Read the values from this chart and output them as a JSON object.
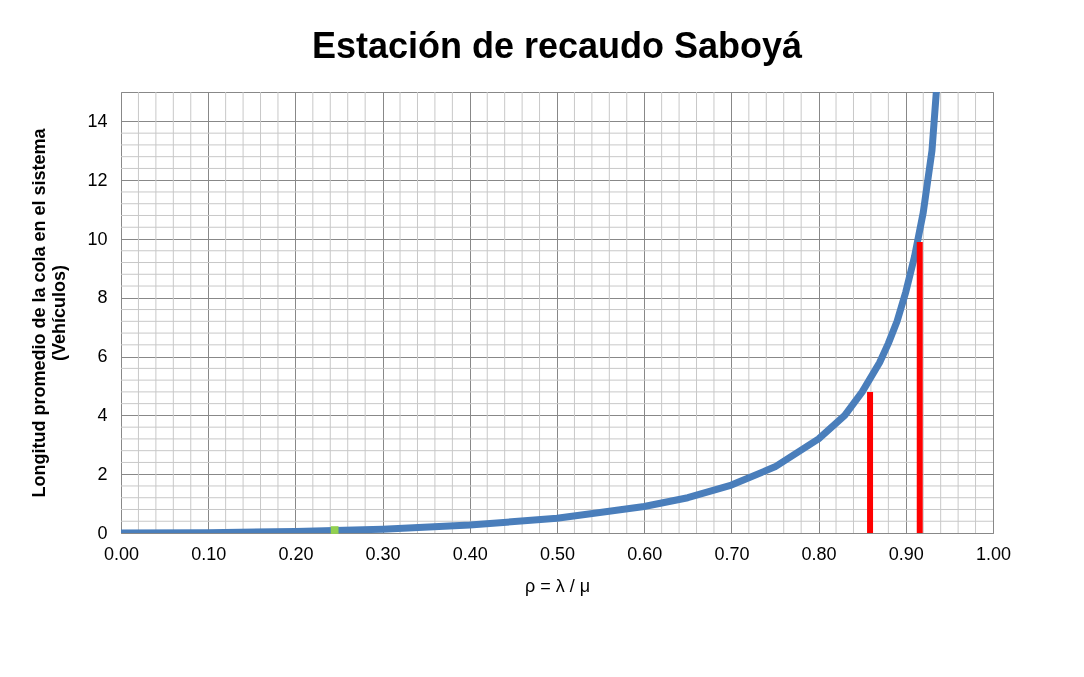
{
  "chart_data": {
    "type": "line",
    "title": "Estación de recaudo Saboyá",
    "xlabel": "ρ = λ / μ",
    "ylabel": "Longitud promedio de la cola en el sistema\n(Vehículos)",
    "xlim": [
      0,
      1
    ],
    "xticks": [
      {
        "value": 0,
        "label": "0.00"
      },
      {
        "value": 0.1,
        "label": "0.10"
      },
      {
        "value": 0.2,
        "label": "0.20"
      },
      {
        "value": 0.3,
        "label": "0.30"
      },
      {
        "value": 0.4,
        "label": "0.40"
      },
      {
        "value": 0.5,
        "label": "0.50"
      },
      {
        "value": 0.6,
        "label": "0.60"
      },
      {
        "value": 0.7,
        "label": "0.70"
      },
      {
        "value": 0.8,
        "label": "0.80"
      },
      {
        "value": 0.9,
        "label": "0.90"
      },
      {
        "value": 1,
        "label": "1.00"
      }
    ],
    "ylim": [
      0,
      15
    ],
    "yticks": [
      0,
      2,
      4,
      6,
      8,
      10,
      12,
      14
    ],
    "grid": true,
    "series": [
      {
        "color": "#4a7ebb",
        "x": [
          0,
          0.1,
          0.2,
          0.3,
          0.4,
          0.5,
          0.6,
          0.65,
          0.7,
          0.75,
          0.8,
          0.83,
          0.85,
          0.87,
          0.88,
          0.89,
          0.9,
          0.91,
          0.92,
          0.93,
          0.935
        ],
        "values": [
          0,
          0.01,
          0.05,
          0.13,
          0.27,
          0.5,
          0.9,
          1.2,
          1.63,
          2.25,
          3.2,
          4.0,
          4.8,
          5.8,
          6.45,
          7.2,
          8.2,
          9.4,
          10.9,
          13.0,
          15
        ]
      },
      {
        "color": "#ff0000",
        "x": [
          0.859,
          0.859
        ],
        "values": [
          0,
          4.8
        ]
      },
      {
        "color": "#ff0000",
        "x": [
          0.916,
          0.916
        ],
        "values": [
          0,
          9.9
        ]
      },
      {
        "type": "scatter",
        "marker": "square",
        "color": "#92d050",
        "x": [
          0.245
        ],
        "values": [
          0.1
        ]
      }
    ]
  }
}
